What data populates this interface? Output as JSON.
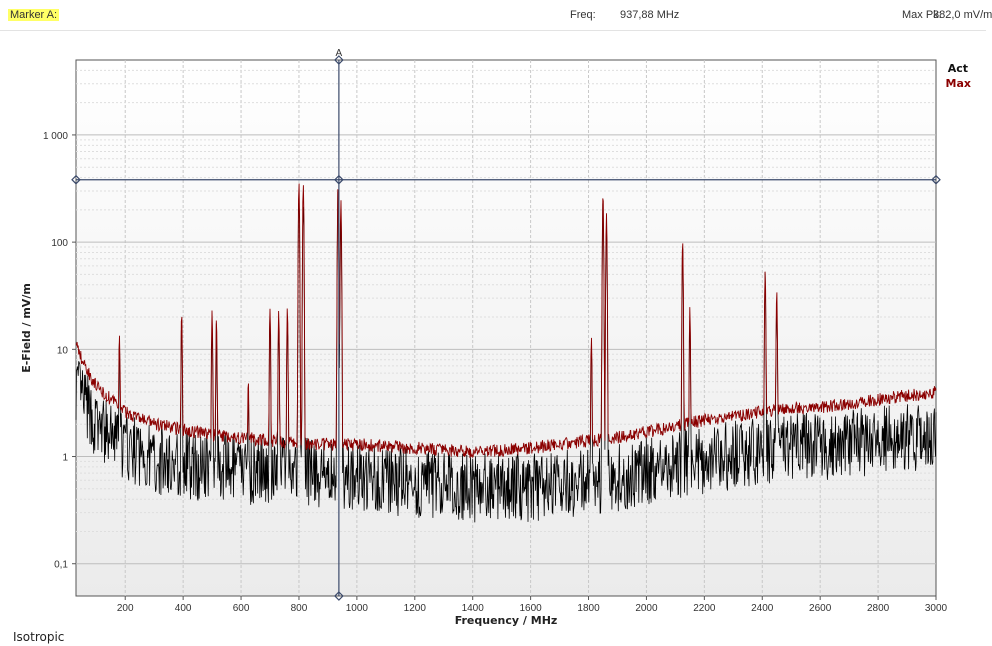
{
  "header": {
    "marker_label": "Marker A:",
    "freq_label": "Freq:",
    "freq_value": "937,88 MHz",
    "maxpk_label": "Max Pk:",
    "maxpk_value": "382,0 mV/m"
  },
  "footer": {
    "mode": "Isotropic"
  },
  "colors": {
    "act": "#000000",
    "max": "#8b0000",
    "cursor": "#3b4a6b",
    "grid": "#c8c8c8"
  },
  "chart_data": {
    "type": "line",
    "xlabel": "Frequency / MHz",
    "ylabel": "E-Field / mV/m",
    "xlim": [
      30,
      3000
    ],
    "ylim": [
      0.05,
      5000
    ],
    "yscale": "log",
    "grid": true,
    "legend_position": "top-right",
    "x_ticks": [
      200,
      400,
      600,
      800,
      1000,
      1200,
      1400,
      1600,
      1800,
      2000,
      2200,
      2400,
      2600,
      2800,
      3000
    ],
    "x_tick_labels": [
      "200",
      "400",
      "600",
      "800",
      "1000",
      "1200",
      "1400",
      "1600",
      "1800",
      "2000",
      "2200",
      "2400",
      "2600",
      "2800",
      "3000"
    ],
    "y_ticks": [
      0.1,
      1,
      10,
      100,
      1000
    ],
    "y_tick_labels": [
      "0,1",
      "1",
      "10",
      "100",
      "1 000"
    ],
    "marker": {
      "name": "A",
      "x": 937.88,
      "y": 382.0
    },
    "series": [
      {
        "name": "Act",
        "color": "#000000",
        "x": [
          30,
          100,
          200,
          300,
          400,
          500,
          600,
          700,
          800,
          900,
          1000,
          1100,
          1200,
          1300,
          1400,
          1500,
          1600,
          1700,
          1800,
          1900,
          2000,
          2100,
          2200,
          2300,
          2400,
          2500,
          2600,
          2700,
          2800,
          2900,
          3000
        ],
        "y": [
          5,
          2,
          1.3,
          1,
          0.9,
          0.85,
          0.8,
          0.8,
          0.78,
          0.75,
          0.7,
          0.65,
          0.6,
          0.58,
          0.55,
          0.55,
          0.55,
          0.6,
          0.65,
          0.7,
          0.8,
          0.9,
          1,
          1.1,
          1.2,
          1.3,
          1.35,
          1.4,
          1.5,
          1.6,
          1.7
        ]
      },
      {
        "name": "Max",
        "color": "#8b0000",
        "x": [
          30,
          50,
          100,
          200,
          300,
          400,
          500,
          600,
          700,
          800,
          900,
          1000,
          1100,
          1200,
          1300,
          1400,
          1500,
          1600,
          1700,
          1800,
          1900,
          2000,
          2100,
          2200,
          2300,
          2400,
          2500,
          2600,
          2700,
          2800,
          2900,
          3000
        ],
        "y": [
          12,
          8,
          4.5,
          2.6,
          2,
          1.8,
          1.6,
          1.5,
          1.4,
          1.35,
          1.3,
          1.3,
          1.25,
          1.2,
          1.15,
          1.1,
          1.15,
          1.2,
          1.3,
          1.4,
          1.5,
          1.7,
          1.9,
          2.2,
          2.4,
          2.6,
          2.8,
          2.9,
          3.1,
          3.4,
          3.7,
          4
        ]
      }
    ],
    "peaks": [
      {
        "x": 180,
        "y": 15
      },
      {
        "x": 395,
        "y": 23
      },
      {
        "x": 500,
        "y": 24
      },
      {
        "x": 515,
        "y": 20
      },
      {
        "x": 625,
        "y": 5.5
      },
      {
        "x": 700,
        "y": 26
      },
      {
        "x": 730,
        "y": 24
      },
      {
        "x": 760,
        "y": 26
      },
      {
        "x": 800,
        "y": 370
      },
      {
        "x": 815,
        "y": 380
      },
      {
        "x": 935,
        "y": 370
      },
      {
        "x": 945,
        "y": 260
      },
      {
        "x": 1810,
        "y": 14
      },
      {
        "x": 1850,
        "y": 300
      },
      {
        "x": 1862,
        "y": 200
      },
      {
        "x": 2125,
        "y": 110
      },
      {
        "x": 2150,
        "y": 25
      },
      {
        "x": 2410,
        "y": 57
      },
      {
        "x": 2450,
        "y": 38
      }
    ]
  }
}
